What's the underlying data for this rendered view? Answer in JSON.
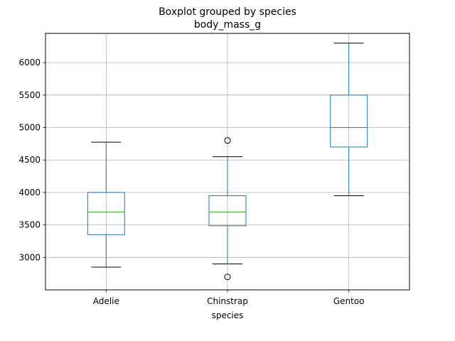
{
  "chart_data": {
    "type": "boxplot",
    "title": "Boxplot grouped by species",
    "subtitle": "body_mass_g",
    "xlabel": "species",
    "ylabel": "",
    "categories": [
      "Adelie",
      "Chinstrap",
      "Gentoo"
    ],
    "ylim": [
      2500,
      6450
    ],
    "yticks": [
      3000,
      3500,
      4000,
      4500,
      5000,
      5500,
      6000
    ],
    "grid": true,
    "boxes": [
      {
        "category": "Adelie",
        "whisker_low": 2850,
        "q1": 3350,
        "median": 3700,
        "q3": 4000,
        "whisker_high": 4775,
        "outliers": []
      },
      {
        "category": "Chinstrap",
        "whisker_low": 2900,
        "q1": 3487.5,
        "median": 3700,
        "q3": 3950,
        "whisker_high": 4550,
        "outliers": [
          2700,
          4800
        ]
      },
      {
        "category": "Gentoo",
        "whisker_low": 3950,
        "q1": 4700,
        "median": 5000,
        "q3": 5500,
        "whisker_high": 6300,
        "outliers": []
      }
    ],
    "colors": {
      "box": "#1f77b4",
      "median": "#2ca02c",
      "grid": "#b0b0b0",
      "whisker_cap": "#000000",
      "outlier": "#000000"
    }
  }
}
